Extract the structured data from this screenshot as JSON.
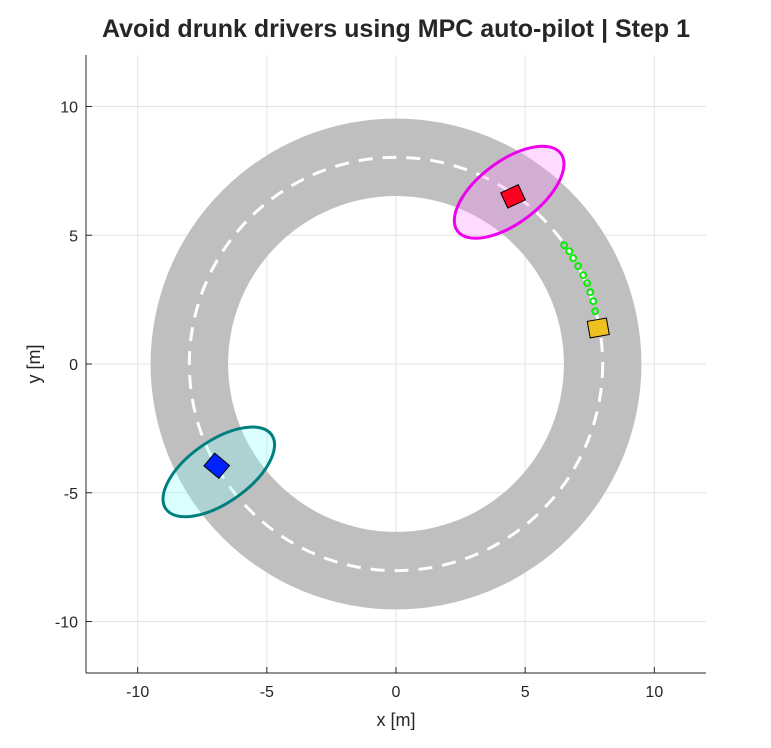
{
  "chart_data": {
    "type": "scene",
    "title": "Avoid drunk drivers using MPC auto-pilot | Step 1",
    "x_label": "x [m]",
    "y_label": "y [m]",
    "xlim": [
      -12,
      12
    ],
    "ylim": [
      -12,
      12
    ],
    "xticks": [
      -10,
      -5,
      0,
      5,
      10
    ],
    "yticks": [
      -10,
      -5,
      0,
      5,
      10
    ],
    "grid": true,
    "road": {
      "inner_radius": 6.5,
      "outer_radius": 9.5,
      "center_radius": 8,
      "color": "#bfbfbf",
      "line_color": "#ffffff"
    },
    "ellipses": [
      {
        "x": 4.38,
        "y": 6.67,
        "a": 2.5,
        "b": 1.2,
        "angle": 37,
        "edge_color": "#ee00ee",
        "face_color": "#ff88ff",
        "face_alpha": 0.3
      },
      {
        "x": -6.86,
        "y": -4.19,
        "a": 2.5,
        "b": 1.2,
        "angle": 35,
        "edge_color": "#007f7f",
        "face_color": "#88ffff",
        "face_alpha": 0.3
      }
    ],
    "cars": [
      {
        "x": 4.53,
        "y": 6.51,
        "width": 0.65,
        "length": 0.75,
        "angle": 25,
        "color": "#ff0022"
      },
      {
        "x": -6.94,
        "y": -3.95,
        "width": 0.65,
        "length": 0.75,
        "angle": -40,
        "color": "#0022ff"
      },
      {
        "x": 7.83,
        "y": 1.4,
        "width": 0.65,
        "length": 0.75,
        "angle": 10,
        "color": "#f0c020"
      }
    ],
    "trajectory": {
      "color": "#00ee00",
      "x": [
        7.71,
        7.64,
        7.52,
        7.4,
        7.25,
        7.05,
        6.86,
        6.71,
        6.51
      ],
      "y": [
        2.05,
        2.44,
        2.79,
        3.14,
        3.45,
        3.8,
        4.11,
        4.38,
        4.61
      ]
    }
  }
}
